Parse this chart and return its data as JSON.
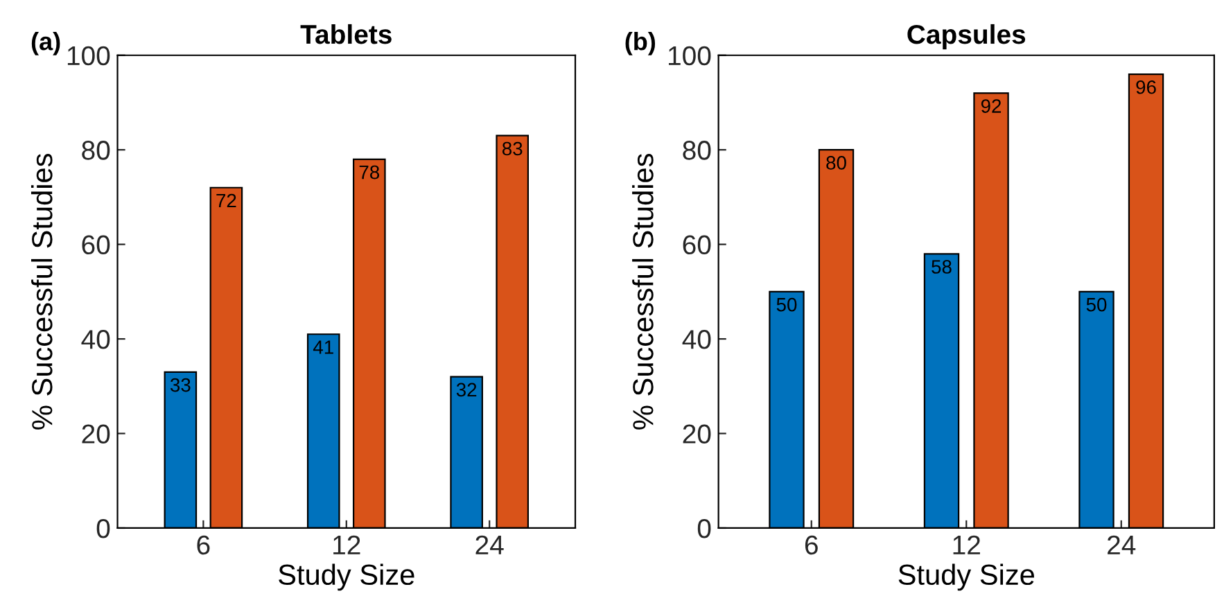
{
  "chart_data": [
    {
      "type": "bar",
      "title": "Tablets",
      "xlabel": "Study Size",
      "ylabel": "% Successful Studies",
      "categories": [
        "6",
        "12",
        "24"
      ],
      "series": [
        {
          "color": "#0072bd",
          "values": [
            33,
            41,
            32
          ]
        },
        {
          "color": "#d95319",
          "values": [
            72,
            78,
            83
          ]
        }
      ],
      "ylim": [
        0,
        100
      ],
      "yticks": [
        0,
        20,
        40,
        60,
        80,
        100
      ],
      "data_labels": true,
      "grid": false,
      "legend": false,
      "annotations": [
        "(a)"
      ]
    },
    {
      "type": "bar",
      "title": "Capsules",
      "xlabel": "Study Size",
      "ylabel": "% Successful Studies",
      "categories": [
        "6",
        "12",
        "24"
      ],
      "series": [
        {
          "color": "#0072bd",
          "values": [
            50,
            58,
            50
          ]
        },
        {
          "color": "#d95319",
          "values": [
            80,
            92,
            96
          ]
        }
      ],
      "ylim": [
        0,
        100
      ],
      "yticks": [
        0,
        20,
        40,
        60,
        80,
        100
      ],
      "data_labels": true,
      "grid": false,
      "legend": false,
      "annotations": [
        "(b)"
      ]
    }
  ]
}
